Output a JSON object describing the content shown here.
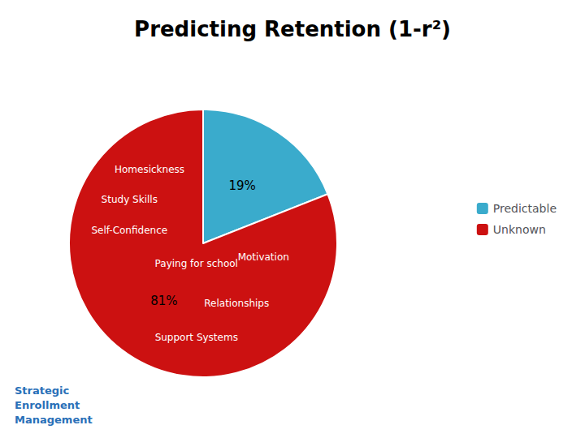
{
  "chart_data": {
    "type": "pie",
    "title": "Predicting Retention (1-r²)",
    "categories": [
      "Predictable",
      "Unknown"
    ],
    "values": [
      19,
      81
    ],
    "value_labels": [
      "19%",
      "81%"
    ],
    "colors": [
      "#3aabcc",
      "#cc1111"
    ],
    "data_labels": true,
    "legend": "right",
    "annotations": [
      "Homesickness",
      "Study Skills",
      "Self-Confidence",
      "Motivation",
      "Paying for school",
      "Relationships",
      "Support Systems",
      "Strategic\nEnrollment\nManagement"
    ]
  }
}
